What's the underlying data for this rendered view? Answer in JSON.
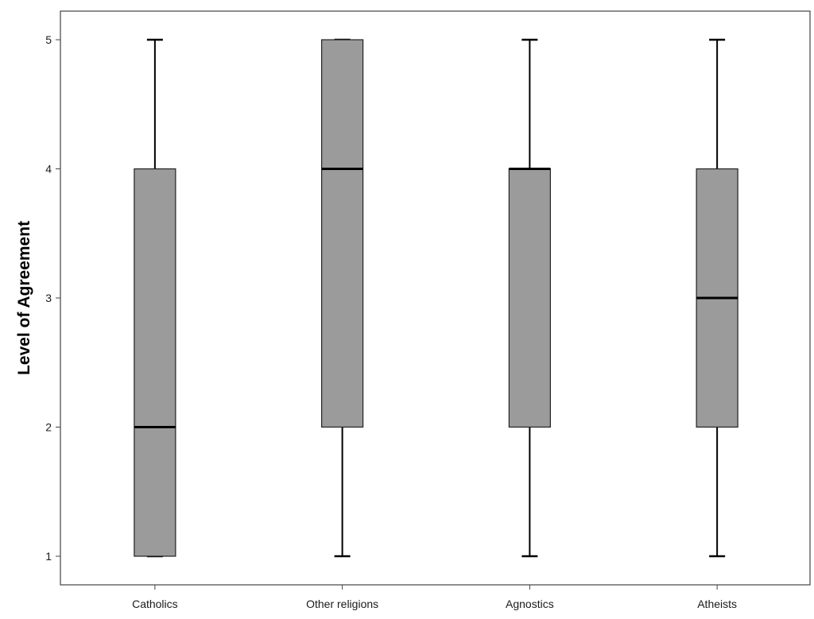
{
  "chart_data": {
    "type": "boxplot",
    "title": "",
    "xlabel": "",
    "ylabel": "Level of Agreement",
    "ylim": [
      1,
      5
    ],
    "yticks": [
      "1",
      "2",
      "3",
      "4",
      "5"
    ],
    "grid": false,
    "categories": [
      "Catholics",
      "Other religions",
      "Agnostics",
      "Atheists"
    ],
    "boxes": [
      {
        "category": "Catholics",
        "min": 1,
        "q1": 1,
        "median": 2,
        "q3": 4,
        "max": 5
      },
      {
        "category": "Other religions",
        "min": 1,
        "q1": 2,
        "median": 4,
        "q3": 5,
        "max": 5
      },
      {
        "category": "Agnostics",
        "min": 1,
        "q1": 2,
        "median": 4,
        "q3": 4,
        "max": 5
      },
      {
        "category": "Atheists",
        "min": 1,
        "q1": 2,
        "median": 3,
        "q3": 4,
        "max": 5
      }
    ],
    "colors": {
      "box_fill": "#9b9b9b",
      "box_stroke": "#222222",
      "whisker": "#000000",
      "median": "#000000",
      "frame": "#444444"
    }
  }
}
